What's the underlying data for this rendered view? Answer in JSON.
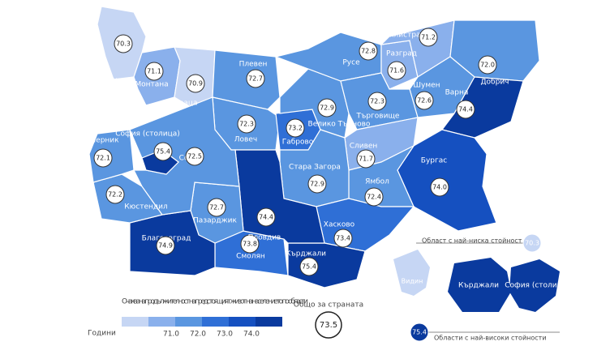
{
  "map": {
    "regions": [
      {
        "name": "Видин",
        "value": "70.3",
        "color": "#c6d6f4"
      },
      {
        "name": "Монтана",
        "value": "71.1",
        "color": "#8ab0ec"
      },
      {
        "name": "Враца",
        "value": "70.9",
        "color": "#c6d6f4"
      },
      {
        "name": "Плевен",
        "value": "72.7",
        "color": "#5a96e0"
      },
      {
        "name": "Ловеч",
        "value": "72.3",
        "color": "#5a96e0"
      },
      {
        "name": "Габрово",
        "value": "73.2",
        "color": "#2f6fd6"
      },
      {
        "name": "Велико Търново",
        "value": "72.9",
        "color": "#5a96e0"
      },
      {
        "name": "Русе",
        "value": "72.8",
        "color": "#5a96e0"
      },
      {
        "name": "Разград",
        "value": "71.6",
        "color": "#8ab0ec"
      },
      {
        "name": "Силистра",
        "value": "71.2",
        "color": "#8ab0ec"
      },
      {
        "name": "Добрич",
        "value": "72.0",
        "color": "#5a96e0"
      },
      {
        "name": "Шумен",
        "value": "72.6",
        "color": "#5a96e0"
      },
      {
        "name": "Търговище",
        "value": "72.3",
        "color": "#5a96e0"
      },
      {
        "name": "Варна",
        "value": "74.4",
        "color": "#0a3a9e"
      },
      {
        "name": "Сливен",
        "value": "71.7",
        "color": "#8ab0ec"
      },
      {
        "name": "Бургас",
        "value": "74.0",
        "color": "#1550c0"
      },
      {
        "name": "Ямбол",
        "value": "72.4",
        "color": "#5a96e0"
      },
      {
        "name": "Стара Загора",
        "value": "72.9",
        "color": "#5a96e0"
      },
      {
        "name": "Хасково",
        "value": "73.4",
        "color": "#2f6fd6"
      },
      {
        "name": "Кърджали",
        "value": "75.4",
        "color": "#0a3a9e"
      },
      {
        "name": "Смолян",
        "value": "73.8",
        "color": "#2f6fd6"
      },
      {
        "name": "Пловдив",
        "value": "74.4",
        "color": "#0a3a9e"
      },
      {
        "name": "Пазарджик",
        "value": "72.7",
        "color": "#5a96e0"
      },
      {
        "name": "Благоевград",
        "value": "74.9",
        "color": "#0a3a9e"
      },
      {
        "name": "Кюстендил",
        "value": "72.2",
        "color": "#5a96e0"
      },
      {
        "name": "Перник",
        "value": "72.1",
        "color": "#5a96e0"
      },
      {
        "name": "София",
        "value": "72.5",
        "color": "#5a96e0"
      },
      {
        "name": "София (столица)",
        "value": "75.4",
        "color": "#0a3a9e"
      }
    ],
    "legend": {
      "title": "Очаквана продължителност на предстоящият живот на населението по области",
      "unit": "Години",
      "colors": [
        "#c6d6f4",
        "#8ab0ec",
        "#5a96e0",
        "#2f6fd6",
        "#1550c0",
        "#0a3a9e"
      ],
      "ticks": [
        "71.0",
        "72.0",
        "73.0",
        "74.0"
      ]
    },
    "total": {
      "label": "Общо за страната",
      "value": "73.5"
    },
    "lowest": {
      "label": "Област с най-ниска стойност",
      "value": "70.3",
      "region": "Видин"
    },
    "highest": {
      "label": "Области с най-високи стойности",
      "value": "75.4",
      "regions": [
        "Кърджали",
        "София (столица)"
      ]
    }
  }
}
